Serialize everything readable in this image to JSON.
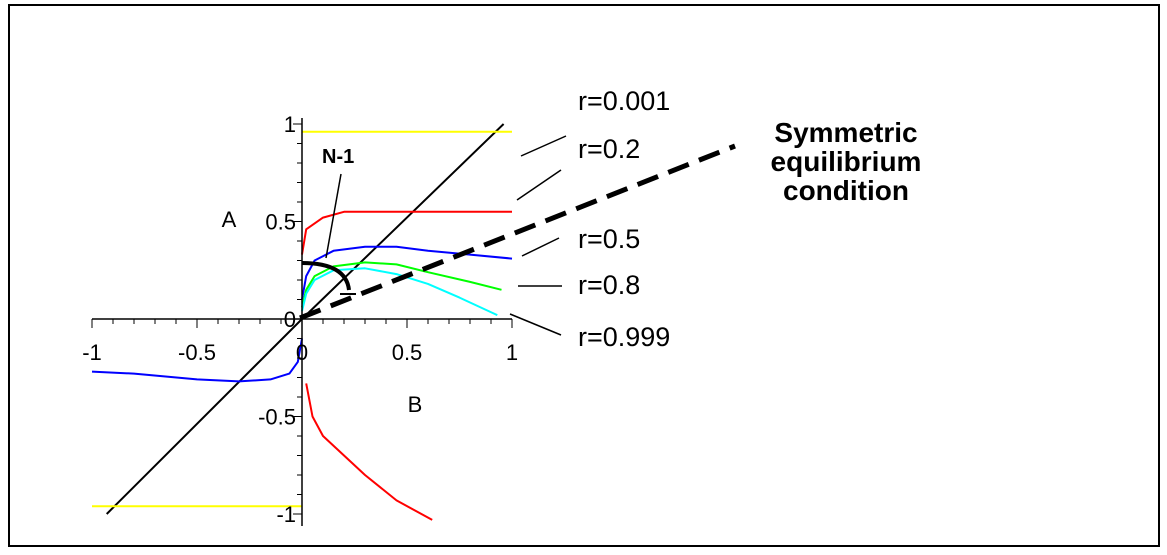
{
  "chart_data": {
    "type": "line",
    "xlabel": "B",
    "ylabel": "A",
    "xlim": [
      -1,
      1
    ],
    "ylim": [
      -1,
      1
    ],
    "xticks": [
      {
        "value": -1,
        "label": "-1"
      },
      {
        "value": -0.5,
        "label": "-0.5"
      },
      {
        "value": 0,
        "label": "0"
      },
      {
        "value": 0.5,
        "label": "0.5"
      },
      {
        "value": 1,
        "label": "1"
      }
    ],
    "yticks": [
      {
        "value": 1,
        "label": "1"
      },
      {
        "value": 0.5,
        "label": "0.5"
      },
      {
        "value": 0,
        "label": "0"
      },
      {
        "value": -0.5,
        "label": "-0.5"
      },
      {
        "value": -1,
        "label": "-1"
      }
    ],
    "series": [
      {
        "name": "r=0.001",
        "color": "#000000",
        "x": [
          -0.93,
          0.0,
          0.96
        ],
        "y": [
          -1.0,
          0.0,
          1.0
        ]
      },
      {
        "name": "r=0.2",
        "color": "#ff0000",
        "x": [
          0.0,
          0.02,
          0.1,
          0.2,
          0.4,
          0.6,
          0.8,
          1.0
        ],
        "y": [
          0.33,
          0.46,
          0.52,
          0.55,
          0.55,
          0.55,
          0.55,
          0.55
        ]
      },
      {
        "name": "r=0.2 (lower branch)",
        "color": "#ff0000",
        "x": [
          0.02,
          0.05,
          0.1,
          0.2,
          0.3,
          0.45,
          0.62
        ],
        "y": [
          -0.33,
          -0.5,
          -0.6,
          -0.7,
          -0.8,
          -0.93,
          -1.03
        ]
      },
      {
        "name": "r=0.5",
        "color": "#0000ff",
        "x": [
          0.0,
          0.02,
          0.06,
          0.15,
          0.3,
          0.45,
          0.6,
          0.8,
          1.0
        ],
        "y": [
          0.1,
          0.22,
          0.3,
          0.35,
          0.37,
          0.37,
          0.35,
          0.33,
          0.31
        ]
      },
      {
        "name": "r=0.5 (left branch)",
        "color": "#0000ff",
        "x": [
          -1.0,
          -0.8,
          -0.5,
          -0.3,
          -0.15,
          -0.06,
          -0.02,
          0.0
        ],
        "y": [
          -0.27,
          -0.28,
          -0.31,
          -0.32,
          -0.31,
          -0.28,
          -0.22,
          -0.1
        ]
      },
      {
        "name": "r=0.8",
        "color": "#00ff00",
        "x": [
          0.0,
          0.02,
          0.06,
          0.15,
          0.3,
          0.45,
          0.6,
          0.8,
          0.95
        ],
        "y": [
          0.06,
          0.15,
          0.22,
          0.27,
          0.29,
          0.28,
          0.24,
          0.19,
          0.15
        ]
      },
      {
        "name": "r=0.999",
        "color": "#00ffff",
        "x": [
          0.0,
          0.02,
          0.06,
          0.15,
          0.3,
          0.45,
          0.6,
          0.75,
          0.93
        ],
        "y": [
          0.04,
          0.13,
          0.2,
          0.25,
          0.26,
          0.23,
          0.18,
          0.11,
          0.02
        ]
      },
      {
        "name": "yellow upper",
        "color": "#ffff00",
        "x": [
          0.0,
          1.0
        ],
        "y": [
          0.96,
          0.96
        ]
      },
      {
        "name": "yellow lower",
        "color": "#ffff00",
        "x": [
          -1.0,
          0.0
        ],
        "y": [
          -0.96,
          -0.96
        ]
      }
    ],
    "labels": [
      "r=0.001",
      "r=0.2",
      "r=0.5",
      "r=0.8",
      "r=0.999"
    ],
    "annotations": {
      "n_minus_1": "N-1",
      "symmetric_lines": [
        "Symmetric",
        "equilibrium",
        "condition"
      ]
    }
  }
}
